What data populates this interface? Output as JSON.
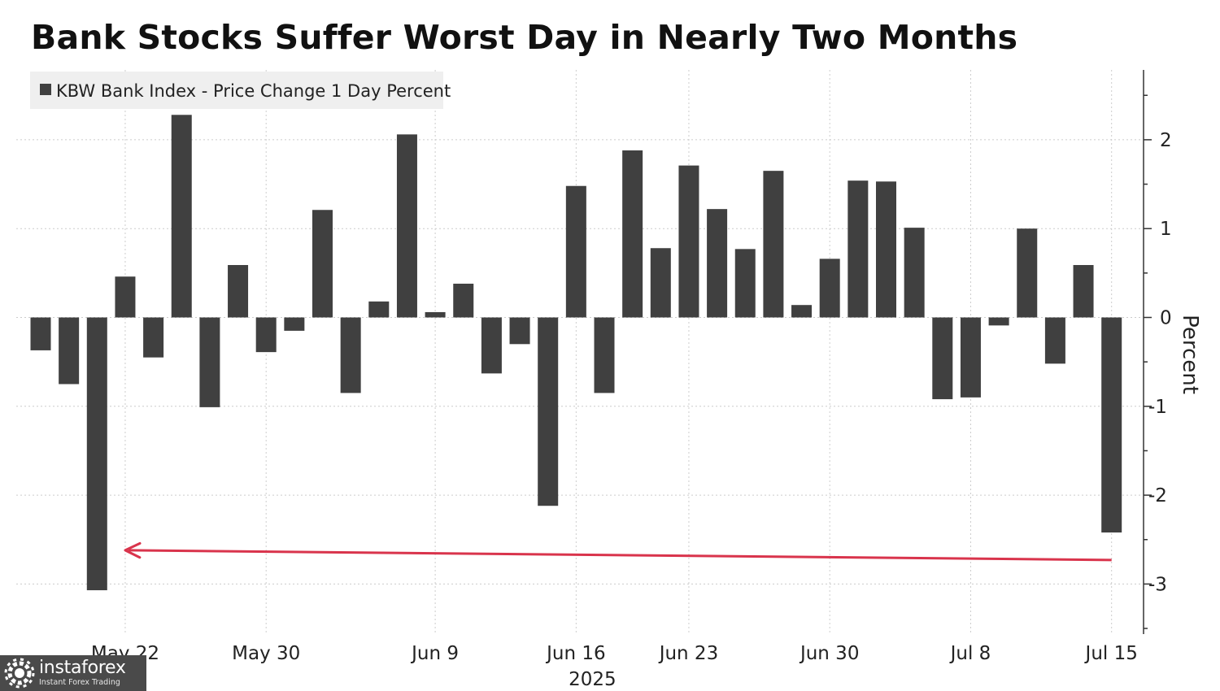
{
  "title": "Bank Stocks Suffer Worst Day in Nearly Two Months",
  "logo": {
    "name": "instaforex",
    "subtitle": "Instant Forex Trading"
  },
  "colors": {
    "bar": "#404040",
    "arrow": "#d9344c",
    "grid": "#cccccc",
    "legend_bg": "#efefef"
  },
  "chart_data": {
    "type": "bar",
    "legend": [
      "KBW Bank Index - Price Change 1 Day Percent"
    ],
    "legend_position": "top-left",
    "ylabel": "Percent",
    "ylim": [
      -3.5,
      2.8
    ],
    "yticks": [
      2,
      1,
      0,
      -1,
      -2,
      -3
    ],
    "ytick_labels": [
      "2",
      "1",
      "0",
      "-1",
      "-2",
      "-3"
    ],
    "grid": true,
    "year_label": "2025",
    "xtick_labels": [
      "May 22",
      "May 30",
      "Jun 9",
      "Jun 16",
      "Jun 23",
      "Jun 30",
      "Jul 8",
      "Jul 15"
    ],
    "categories": [
      "May 19",
      "May 20",
      "May 21",
      "May 22",
      "May 23",
      "May 27",
      "May 28",
      "May 29",
      "May 30",
      "Jun 2",
      "Jun 3",
      "Jun 4",
      "Jun 5",
      "Jun 6",
      "Jun 9",
      "Jun 10",
      "Jun 11",
      "Jun 12",
      "Jun 13",
      "Jun 16",
      "Jun 17",
      "Jun 18",
      "Jun 20",
      "Jun 23",
      "Jun 24",
      "Jun 25",
      "Jun 26",
      "Jun 27",
      "Jun 30",
      "Jul 1",
      "Jul 2",
      "Jul 3",
      "Jul 7",
      "Jul 8",
      "Jul 9",
      "Jul 10",
      "Jul 11",
      "Jul 14",
      "Jul 15"
    ],
    "values": [
      -0.37,
      -0.75,
      -3.07,
      0.46,
      -0.45,
      2.28,
      -1.01,
      0.59,
      -0.39,
      -0.15,
      1.21,
      -0.85,
      0.18,
      2.06,
      0.06,
      0.38,
      -0.63,
      -0.3,
      -2.12,
      1.48,
      -0.85,
      1.88,
      0.78,
      1.71,
      1.22,
      0.77,
      1.65,
      0.14,
      0.66,
      1.54,
      1.53,
      1.01,
      -0.92,
      -0.9,
      -0.09,
      1.0,
      -0.52,
      0.59,
      -2.42
    ],
    "annotations": [
      {
        "type": "arrow",
        "from_category": "Jul 15",
        "to_category": "May 22",
        "from_y": -2.73,
        "to_y": -2.62
      }
    ]
  }
}
